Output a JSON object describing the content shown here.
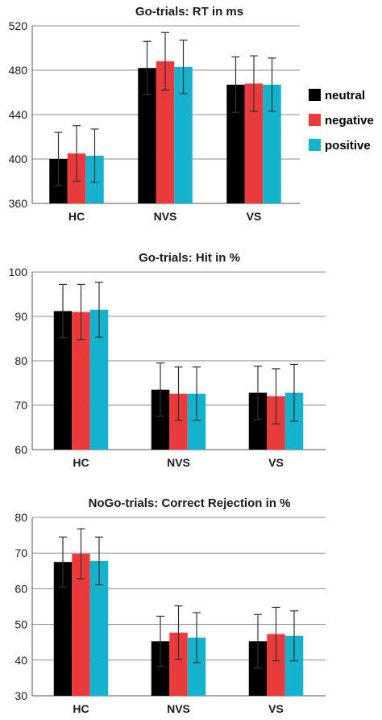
{
  "chart_data": [
    {
      "type": "bar",
      "title": "Go-trials: RT in ms",
      "categories": [
        "HC",
        "NVS",
        "VS"
      ],
      "ylim": [
        360,
        520
      ],
      "yticks": [
        360,
        400,
        440,
        480,
        520
      ],
      "grid": true,
      "series": [
        {
          "name": "neutral",
          "color": "#000000",
          "values": [
            400,
            482,
            467
          ],
          "errors": [
            24,
            24,
            25
          ]
        },
        {
          "name": "negative",
          "color": "#ea3a3c",
          "values": [
            405,
            488,
            468
          ],
          "errors": [
            25,
            26,
            25
          ]
        },
        {
          "name": "positive",
          "color": "#14b2cc",
          "values": [
            403,
            483,
            467
          ],
          "errors": [
            24,
            24,
            24
          ]
        }
      ],
      "legend": "right"
    },
    {
      "type": "bar",
      "title": "Go-trials: Hit in %",
      "categories": [
        "HC",
        "NVS",
        "VS"
      ],
      "ylim": [
        60,
        100
      ],
      "yticks": [
        60,
        70,
        80,
        90,
        100
      ],
      "grid": true,
      "series": [
        {
          "name": "neutral",
          "color": "#000000",
          "values": [
            91.2,
            73.5,
            72.8
          ],
          "errors": [
            6,
            6,
            6
          ]
        },
        {
          "name": "negative",
          "color": "#ea3a3c",
          "values": [
            91.0,
            72.6,
            72.0
          ],
          "errors": [
            6.2,
            6,
            6.2
          ]
        },
        {
          "name": "positive",
          "color": "#14b2cc",
          "values": [
            91.5,
            72.6,
            72.8
          ],
          "errors": [
            6.2,
            6,
            6.4
          ]
        }
      ]
    },
    {
      "type": "bar",
      "title": "NoGo-trials: Correct Rejection in %",
      "categories": [
        "HC",
        "NVS",
        "VS"
      ],
      "ylim": [
        30,
        80
      ],
      "yticks": [
        30,
        40,
        50,
        60,
        70,
        80
      ],
      "grid": true,
      "series": [
        {
          "name": "neutral",
          "color": "#000000",
          "values": [
            67.5,
            45.3,
            45.3
          ],
          "errors": [
            7,
            7,
            7.5
          ]
        },
        {
          "name": "negative",
          "color": "#ea3a3c",
          "values": [
            69.8,
            47.7,
            47.3
          ],
          "errors": [
            7,
            7.5,
            7.5
          ]
        },
        {
          "name": "positive",
          "color": "#14b2cc",
          "values": [
            67.8,
            46.3,
            46.8
          ],
          "errors": [
            6.7,
            7,
            7
          ]
        }
      ]
    }
  ]
}
